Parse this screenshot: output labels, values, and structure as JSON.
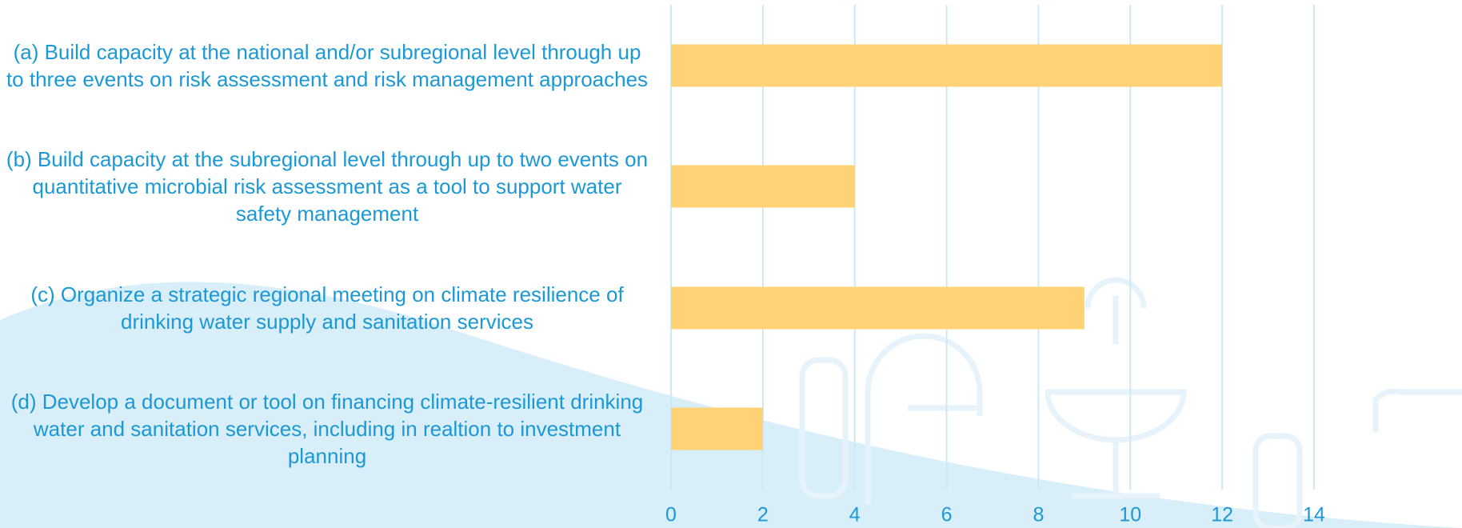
{
  "chart_data": {
    "type": "bar",
    "orientation": "horizontal",
    "categories": [
      "(a) Build capacity at the national and/or subregional level through up to three events on risk assessment and risk management approaches",
      "(b) Build capacity at the subregional level through up to two events on quantitative microbial risk assessment as a tool to support water safety management",
      "(c) Organize a strategic regional meeting on climate resilience of drinking water supply and sanitation services",
      "(d) Develop a document or tool on financing climate-resilient drinking water and sanitation services, including in realtion to investment planning"
    ],
    "values": [
      12,
      4,
      9,
      2
    ],
    "color": "#ffd275",
    "xlim": [
      0,
      14
    ],
    "xticks": [
      0,
      2,
      4,
      6,
      8,
      10,
      12,
      14
    ],
    "grid": true
  }
}
